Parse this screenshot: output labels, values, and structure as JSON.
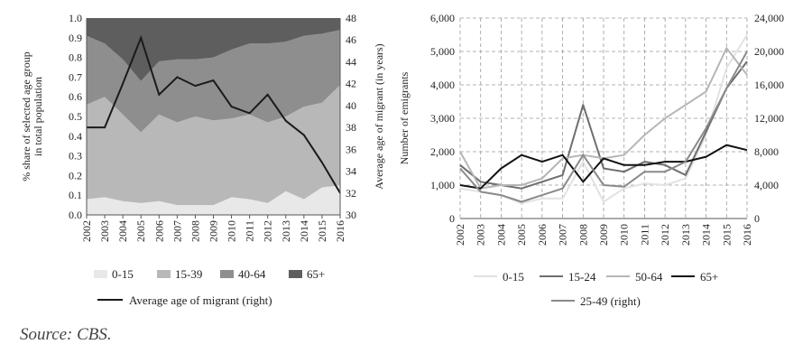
{
  "chart_data": [
    {
      "type": "area",
      "stacked": true,
      "categories": [
        "2002",
        "2003",
        "2004",
        "2005",
        "2006",
        "2007",
        "2008",
        "2009",
        "2010",
        "2011",
        "2012",
        "2013",
        "2014",
        "2015",
        "2016"
      ],
      "ylabel": "% share of selected age group in total population",
      "y2label": "Average age of migrant (in years)",
      "ylim": [
        0,
        1.0
      ],
      "y2lim": [
        30,
        48
      ],
      "yticks": [
        "0.0",
        "0.1",
        "0.2",
        "0.3",
        "0.4",
        "0.5",
        "0.6",
        "0.7",
        "0.8",
        "0.9",
        "1.0"
      ],
      "y2ticks": [
        "30",
        "32",
        "34",
        "36",
        "38",
        "40",
        "42",
        "44",
        "46",
        "48"
      ],
      "grid": false,
      "legend_position": "bottom",
      "series": [
        {
          "name": "0-15",
          "color": "#e8e8e8",
          "values": [
            0.08,
            0.09,
            0.07,
            0.06,
            0.07,
            0.05,
            0.05,
            0.05,
            0.09,
            0.08,
            0.06,
            0.12,
            0.08,
            0.14,
            0.15
          ]
        },
        {
          "name": "15-39",
          "color": "#b8b8b8",
          "values": [
            0.48,
            0.51,
            0.44,
            0.36,
            0.44,
            0.42,
            0.45,
            0.43,
            0.4,
            0.43,
            0.41,
            0.38,
            0.47,
            0.43,
            0.51
          ]
        },
        {
          "name": "40-64",
          "color": "#8e8e8e",
          "values": [
            0.35,
            0.27,
            0.28,
            0.26,
            0.27,
            0.32,
            0.29,
            0.32,
            0.35,
            0.36,
            0.4,
            0.38,
            0.36,
            0.35,
            0.28
          ]
        },
        {
          "name": "65+",
          "color": "#5e5e5e",
          "values": [
            0.09,
            0.13,
            0.21,
            0.32,
            0.22,
            0.21,
            0.21,
            0.2,
            0.16,
            0.13,
            0.13,
            0.12,
            0.09,
            0.08,
            0.06
          ]
        }
      ],
      "line": {
        "name": "Average age of migrant (right)",
        "axis": "right",
        "color": "#1a1a1a",
        "values": [
          38.0,
          38.0,
          42.0,
          46.2,
          41.0,
          42.6,
          41.8,
          42.3,
          39.9,
          39.3,
          41.0,
          38.6,
          37.3,
          34.8,
          32.0
        ]
      }
    },
    {
      "type": "line",
      "categories": [
        "2002",
        "2003",
        "2004",
        "2005",
        "2006",
        "2007",
        "2008",
        "2009",
        "2010",
        "2011",
        "2012",
        "2013",
        "2014",
        "2015",
        "2016"
      ],
      "ylabel": "Number of emigrants",
      "ylim": [
        0,
        6000
      ],
      "y2lim": [
        0,
        24000
      ],
      "yticks": [
        "0",
        "1,000",
        "2,000",
        "3,000",
        "4,000",
        "5,000",
        "6,000"
      ],
      "y2ticks": [
        "0",
        "4,000",
        "8,000",
        "12,000",
        "16,000",
        "20,000",
        "24,000"
      ],
      "grid": true,
      "legend_position": "bottom",
      "series": [
        {
          "name": "0-15",
          "color": "#e2e2e2",
          "width": 2,
          "axis": "left",
          "values": [
            900,
            800,
            700,
            450,
            600,
            600,
            1700,
            500,
            900,
            1050,
            1000,
            1200,
            2500,
            4500,
            5500
          ]
        },
        {
          "name": "15-24",
          "color": "#6e6e6e",
          "width": 2,
          "axis": "left",
          "values": [
            1600,
            1100,
            1000,
            900,
            1100,
            1300,
            3400,
            1500,
            1400,
            1700,
            1600,
            1300,
            2600,
            3900,
            4700
          ]
        },
        {
          "name": "50-64",
          "color": "#b6b6b6",
          "width": 2,
          "axis": "left",
          "values": [
            2000,
            900,
            1000,
            1000,
            1200,
            1800,
            1900,
            1800,
            1900,
            2500,
            3000,
            3400,
            3800,
            5100,
            4300
          ]
        },
        {
          "name": "65+",
          "color": "#111111",
          "width": 2,
          "axis": "left",
          "values": [
            1000,
            900,
            1500,
            1900,
            1700,
            1900,
            1100,
            1800,
            1600,
            1600,
            1700,
            1700,
            1850,
            2200,
            2050
          ]
        },
        {
          "name": "25-49 (right)",
          "color": "#8a8a8a",
          "width": 2,
          "axis": "right",
          "values": [
            6000,
            3200,
            2800,
            2000,
            2800,
            3600,
            7600,
            4000,
            3800,
            5600,
            5600,
            6800,
            10800,
            15600,
            20000
          ]
        }
      ]
    }
  ],
  "legend1": {
    "items": [
      {
        "label": "0-15",
        "color": "#e8e8e8"
      },
      {
        "label": "15-39",
        "color": "#b8b8b8"
      },
      {
        "label": "40-64",
        "color": "#8e8e8e"
      },
      {
        "label": "65+",
        "color": "#5e5e5e"
      }
    ],
    "line_label": "Average age of migrant (right)"
  },
  "legend2": {
    "items": [
      {
        "label": "0-15",
        "color": "#e2e2e2"
      },
      {
        "label": "15-24",
        "color": "#6e6e6e"
      },
      {
        "label": "50-64",
        "color": "#b6b6b6"
      },
      {
        "label": "65+",
        "color": "#111111"
      }
    ],
    "item2": {
      "label": "25-49 (right)",
      "color": "#8a8a8a"
    }
  },
  "source": "Source: CBS."
}
